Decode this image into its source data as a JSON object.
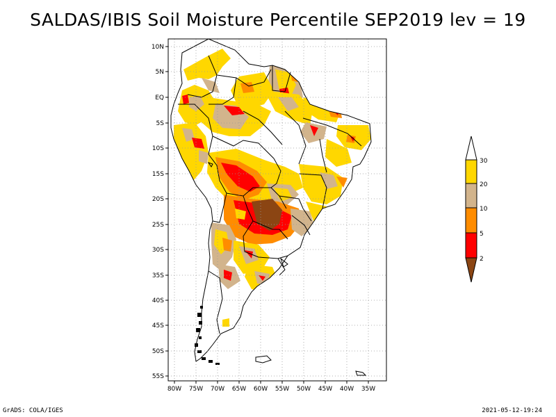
{
  "title": "SALDAS/IBIS Soil Moisture Percentile SEP2019 lev = 19",
  "footer": {
    "left": "GrADS: COLA/IGES",
    "right": "2021-05-12-19:24"
  },
  "map": {
    "lat_labels": [
      "10N",
      "5N",
      "EQ",
      "5S",
      "10S",
      "15S",
      "20S",
      "25S",
      "30S",
      "35S",
      "40S",
      "45S",
      "50S",
      "55S"
    ],
    "lon_labels": [
      "80W",
      "75W",
      "70W",
      "65W",
      "60W",
      "55W",
      "50W",
      "45W",
      "40W",
      "35W"
    ],
    "lat_range": [
      -56,
      11
    ],
    "lon_range": [
      -81,
      -33
    ],
    "grid": true,
    "colors": {
      "land": "#ffffff",
      "coastline": "#000000",
      "percentile_2": "#8b4513",
      "percentile_2_5": "#ff0000",
      "percentile_5_10": "#ff8c00",
      "percentile_10_20": "#d2b48c",
      "percentile_20_30": "#ffd700",
      "percentile_30_plus": "#ffffff"
    }
  },
  "legend": {
    "labels": [
      "30",
      "20",
      "10",
      "5",
      "2"
    ],
    "colors": [
      "#ffffff",
      "#ffd700",
      "#d2b48c",
      "#ff8c00",
      "#ff0000",
      "#8b4513"
    ]
  }
}
